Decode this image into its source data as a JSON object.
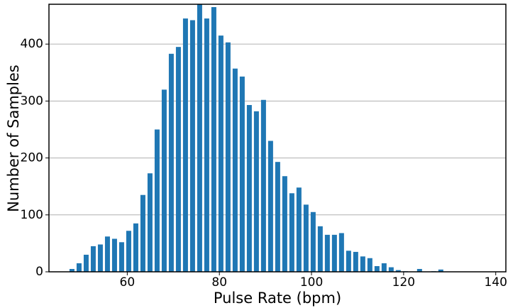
{
  "chart_data": {
    "type": "histogram",
    "x_label": "Pulse Rate (bpm)",
    "y_label": "Number of Samples",
    "bins": [
      47.23,
      48.77,
      50.31,
      51.85,
      53.39,
      54.93,
      56.47,
      58.01,
      59.55,
      61.09,
      62.63,
      64.17,
      65.71,
      67.25,
      68.79,
      70.33,
      71.87,
      73.41,
      74.95,
      76.49,
      78.03,
      79.57,
      81.11,
      82.65,
      84.19,
      85.73,
      87.27,
      88.81,
      90.35,
      91.89,
      93.43,
      94.97,
      96.51,
      98.05,
      99.59,
      101.13,
      102.67,
      104.21,
      105.75,
      107.29,
      108.83,
      110.37,
      111.91,
      113.45,
      114.99,
      116.53,
      118.07,
      119.61,
      121.15,
      122.69,
      124.23,
      125.77,
      127.31,
      128.85
    ],
    "values": [
      5,
      15,
      30,
      45,
      48,
      62,
      58,
      52,
      72,
      85,
      135,
      173,
      250,
      320,
      383,
      395,
      445,
      442,
      470,
      445,
      465,
      415,
      403,
      357,
      343,
      293,
      282,
      302,
      230,
      193,
      168,
      138,
      148,
      118,
      105,
      80,
      65,
      65,
      68,
      37,
      35,
      27,
      24,
      10,
      15,
      8,
      3,
      1,
      0,
      5,
      0,
      1,
      4
    ],
    "color": "#1f77b4",
    "xlim": [
      43,
      142.2
    ],
    "xticks": [
      60,
      80,
      100,
      120,
      140
    ],
    "ylim": [
      0,
      470
    ],
    "yticks": [
      0,
      100,
      200,
      300,
      400
    ],
    "grid": true
  }
}
